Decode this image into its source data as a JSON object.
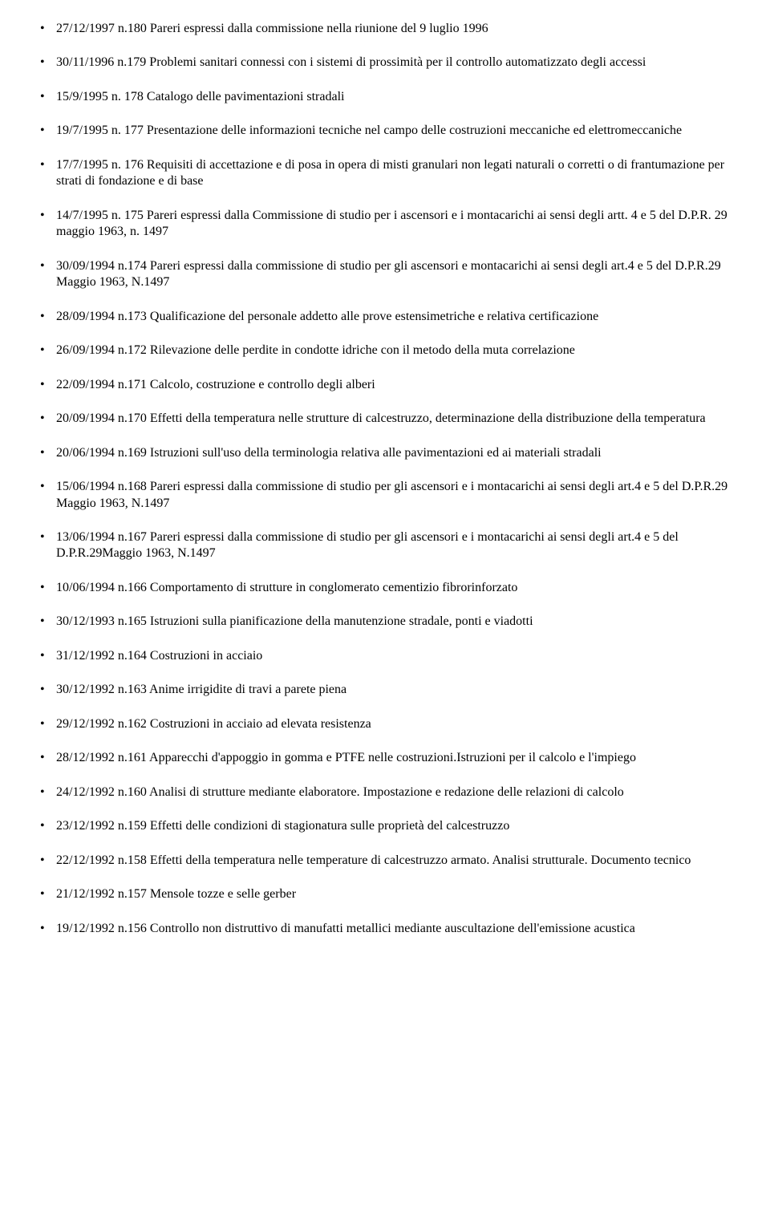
{
  "entries": [
    {
      "text": "27/12/1997 n.180 Pareri espressi dalla commissione nella riunione del 9 luglio 1996"
    },
    {
      "text": "30/11/1996 n.179 Problemi sanitari connessi con i sistemi di prossimità per il controllo automatizzato degli accessi"
    },
    {
      "text": "15/9/1995 n. 178 Catalogo delle pavimentazioni stradali"
    },
    {
      "text": "19/7/1995 n. 177 Presentazione delle informazioni tecniche nel campo delle costruzioni meccaniche ed elettromeccaniche"
    },
    {
      "text": "17/7/1995 n. 176 Requisiti di accettazione e di posa in opera di misti granulari non legati naturali o corretti o di frantumazione per strati di fondazione e di base"
    },
    {
      "text": "14/7/1995 n. 175 Pareri espressi dalla Commissione di studio per i ascensori e i montacarichi ai sensi degli artt. 4 e 5 del D.P.R. 29 maggio 1963, n. 1497"
    },
    {
      "text": "30/09/1994 n.174 Pareri espressi dalla commissione di studio per gli ascensori e montacarichi ai sensi degli art.4 e 5 del D.P.R.29 Maggio 1963, N.1497"
    },
    {
      "text": "28/09/1994 n.173 Qualificazione del personale addetto alle prove estensimetriche e relativa certificazione"
    },
    {
      "text": "26/09/1994 n.172 Rilevazione delle perdite in condotte idriche con il metodo della muta correlazione"
    },
    {
      "text": "22/09/1994 n.171 Calcolo, costruzione e controllo degli alberi"
    },
    {
      "text": "20/09/1994 n.170 Effetti della temperatura nelle strutture di calcestruzzo, determinazione della distribuzione della temperatura"
    },
    {
      "text": "20/06/1994 n.169 Istruzioni sull'uso della terminologia relativa alle pavimentazioni ed ai materiali stradali"
    },
    {
      "text": "15/06/1994 n.168 Pareri espressi dalla commissione di studio per gli ascensori e i montacarichi ai sensi degli art.4 e 5 del D.P.R.29 Maggio 1963, N.1497"
    },
    {
      "text": "13/06/1994 n.167 Pareri espressi dalla commissione di studio per gli ascensori e i montacarichi ai sensi degli art.4 e 5 del D.P.R.29Maggio 1963, N.1497"
    },
    {
      "text": "10/06/1994 n.166 Comportamento di strutture in conglomerato cementizio fibrorinforzato"
    },
    {
      "text": "30/12/1993 n.165 Istruzioni sulla pianificazione della manutenzione stradale, ponti e viadotti"
    },
    {
      "text": "31/12/1992 n.164 Costruzioni in acciaio"
    },
    {
      "text": "30/12/1992 n.163 Anime irrigidite di travi a parete piena"
    },
    {
      "text": "29/12/1992 n.162 Costruzioni in acciaio ad elevata resistenza"
    },
    {
      "text": "28/12/1992 n.161 Apparecchi d'appoggio in gomma e PTFE nelle costruzioni.Istruzioni per il calcolo e l'impiego"
    },
    {
      "text": "24/12/1992 n.160 Analisi di strutture mediante elaboratore. Impostazione e redazione delle relazioni di calcolo"
    },
    {
      "text": "23/12/1992 n.159 Effetti delle condizioni di stagionatura sulle proprietà del calcestruzzo"
    },
    {
      "text": "22/12/1992 n.158 Effetti della temperatura nelle temperature di calcestruzzo armato. Analisi strutturale. Documento tecnico"
    },
    {
      "text": "21/12/1992 n.157 Mensole tozze e selle gerber"
    },
    {
      "text": "19/12/1992 n.156 Controllo non distruttivo di manufatti metallici mediante auscultazione dell'emissione acustica"
    }
  ]
}
